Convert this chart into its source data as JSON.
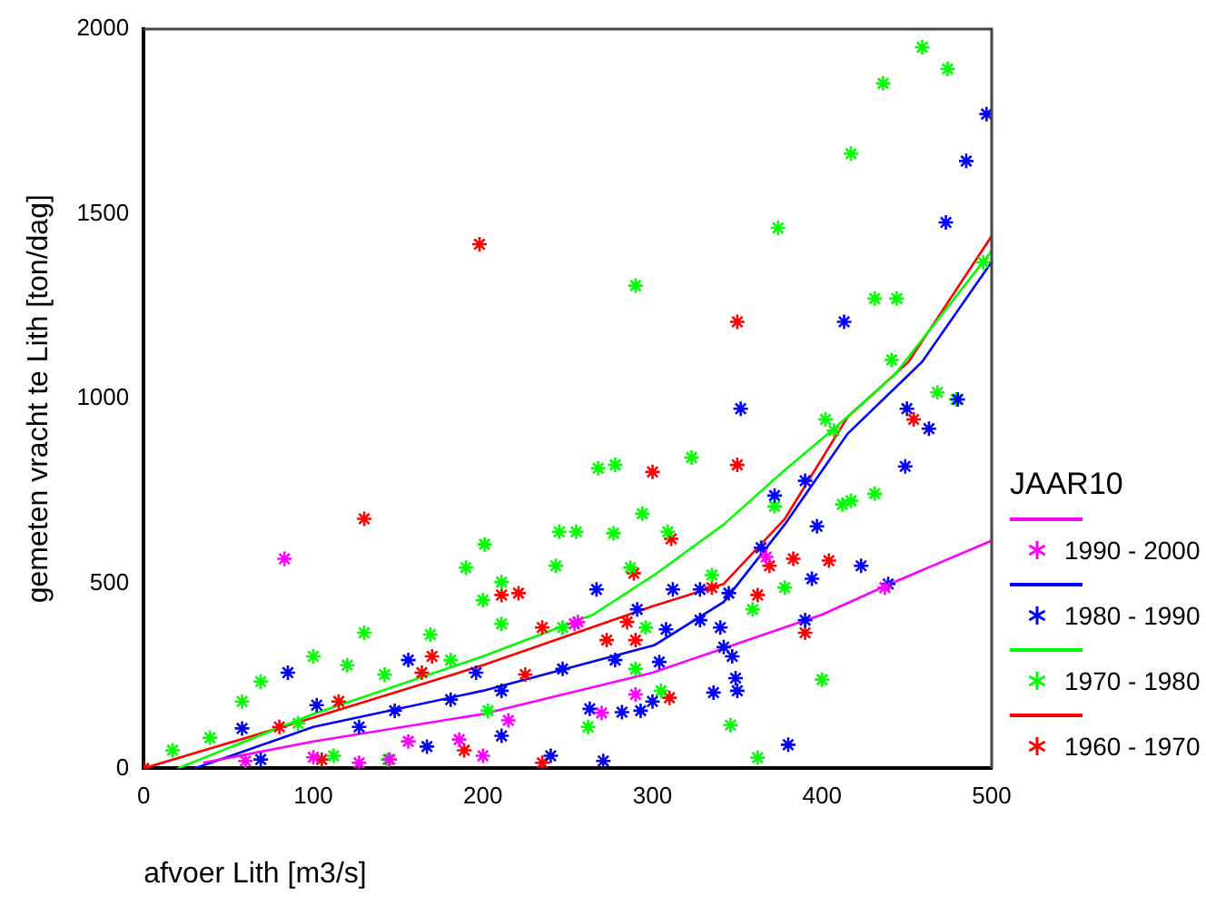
{
  "chart_data": {
    "type": "scatter",
    "xlabel": "afvoer Lith [m3/s]",
    "ylabel": "gemeten vracht te Lith [ton/dag]",
    "legend_title": "JAAR10",
    "legend": "right",
    "marker": "cross",
    "grid": false,
    "xlim": [
      0,
      500
    ],
    "xticks": [
      0,
      100,
      200,
      300,
      400,
      500
    ],
    "ylim": [
      0,
      2000
    ],
    "yticks": [
      0,
      500,
      1000,
      1500,
      2000
    ],
    "series": [
      {
        "name": "1990 - 2000",
        "color": "#ff00ff",
        "x": [
          83,
          127,
          145,
          186,
          200,
          156,
          254,
          256,
          290,
          367,
          437,
          60,
          100,
          215,
          270
        ],
        "values": [
          567,
          15,
          24,
          78,
          34,
          73,
          391,
          396,
          200,
          572,
          489,
          20,
          30,
          130,
          150
        ]
      },
      {
        "name": "1980 - 1990",
        "color": "#0000ff",
        "x": [
          497,
          485,
          473,
          413,
          352,
          450,
          463,
          480,
          85,
          156,
          102,
          181,
          211,
          167,
          211,
          69,
          240,
          58,
          127,
          148,
          196,
          372,
          390,
          397,
          364,
          394,
          423,
          439,
          449,
          267,
          312,
          328,
          345,
          291,
          308,
          328,
          340,
          342,
          347,
          278,
          349,
          336,
          350,
          293,
          282,
          263,
          390,
          380,
          271,
          300,
          247,
          304
        ],
        "values": [
          1770,
          1643,
          1477,
          1208,
          973,
          973,
          919,
          998,
          259,
          293,
          171,
          186,
          210,
          59,
          88,
          24,
          34,
          108,
          112,
          156,
          259,
          738,
          778,
          655,
          597,
          513,
          548,
          499,
          817,
          484,
          484,
          484,
          474,
          430,
          376,
          401,
          381,
          328,
          303,
          293,
          244,
          205,
          210,
          156,
          152,
          161,
          401,
          64,
          20,
          181,
          269,
          288
        ]
      },
      {
        "name": "1970 - 1980",
        "color": "#00ff00",
        "x": [
          459,
          474,
          436,
          417,
          374,
          290,
          431,
          444,
          441,
          468,
          479,
          402,
          407,
          323,
          495,
          201,
          190,
          211,
          200,
          130,
          100,
          245,
          243,
          169,
          120,
          69,
          58,
          142,
          17,
          39,
          91,
          112,
          144,
          203,
          262,
          181,
          211,
          268,
          278,
          255,
          277,
          294,
          309,
          287,
          372,
          412,
          417,
          431,
          335,
          378,
          359,
          296,
          247,
          290,
          305,
          346,
          362,
          400
        ],
        "values": [
          1951,
          1892,
          1853,
          1663,
          1462,
          1306,
          1271,
          1271,
          1105,
          1017,
          998,
          944,
          914,
          841,
          1369,
          606,
          543,
          504,
          455,
          367,
          303,
          640,
          548,
          362,
          279,
          235,
          181,
          254,
          49,
          83,
          122,
          34,
          24,
          156,
          112,
          293,
          391,
          812,
          821,
          640,
          636,
          689,
          640,
          543,
          709,
          714,
          724,
          743,
          523,
          489,
          430,
          381,
          381,
          269,
          210,
          117,
          29,
          240
        ]
      },
      {
        "name": "1960 - 1970",
        "color": "#ff0000",
        "x": [
          350,
          454,
          350,
          198,
          130,
          170,
          211,
          221,
          235,
          225,
          115,
          80,
          105,
          189,
          235,
          164,
          0,
          300,
          311,
          289,
          273,
          285,
          290,
          335,
          369,
          383,
          404,
          362,
          390,
          310
        ],
        "values": [
          1208,
          944,
          821,
          1418,
          675,
          303,
          469,
          474,
          381,
          254,
          181,
          112,
          24,
          49,
          15,
          259,
          0,
          802,
          621,
          528,
          347,
          396,
          347,
          489,
          548,
          567,
          562,
          469,
          367,
          191
        ]
      },
      {
        "type": "line",
        "marker": "none",
        "color": "#ff00ff",
        "x": [
          35,
          100,
          200,
          300,
          400,
          440,
          500
        ],
        "values": [
          15,
          73,
          147,
          259,
          416,
          499,
          616
        ]
      },
      {
        "type": "line",
        "marker": "none",
        "color": "#0000ff",
        "x": [
          30,
          100,
          200,
          301,
          342,
          378,
          415,
          459,
          500
        ],
        "values": [
          0,
          112,
          210,
          333,
          450,
          660,
          905,
          1100,
          1370
        ]
      },
      {
        "type": "line",
        "marker": "none",
        "color": "#00ff00",
        "x": [
          20,
          100,
          200,
          265,
          301,
          342,
          378,
          407,
          443,
          500
        ],
        "values": [
          0,
          147,
          303,
          416,
          523,
          660,
          807,
          919,
          1066,
          1400
        ]
      },
      {
        "type": "line",
        "marker": "none",
        "color": "#ff0000",
        "x": [
          0,
          100,
          200,
          301,
          342,
          378,
          415,
          451,
          500
        ],
        "values": [
          0,
          137,
          279,
          440,
          499,
          675,
          950,
          1100,
          1440
        ]
      }
    ]
  }
}
